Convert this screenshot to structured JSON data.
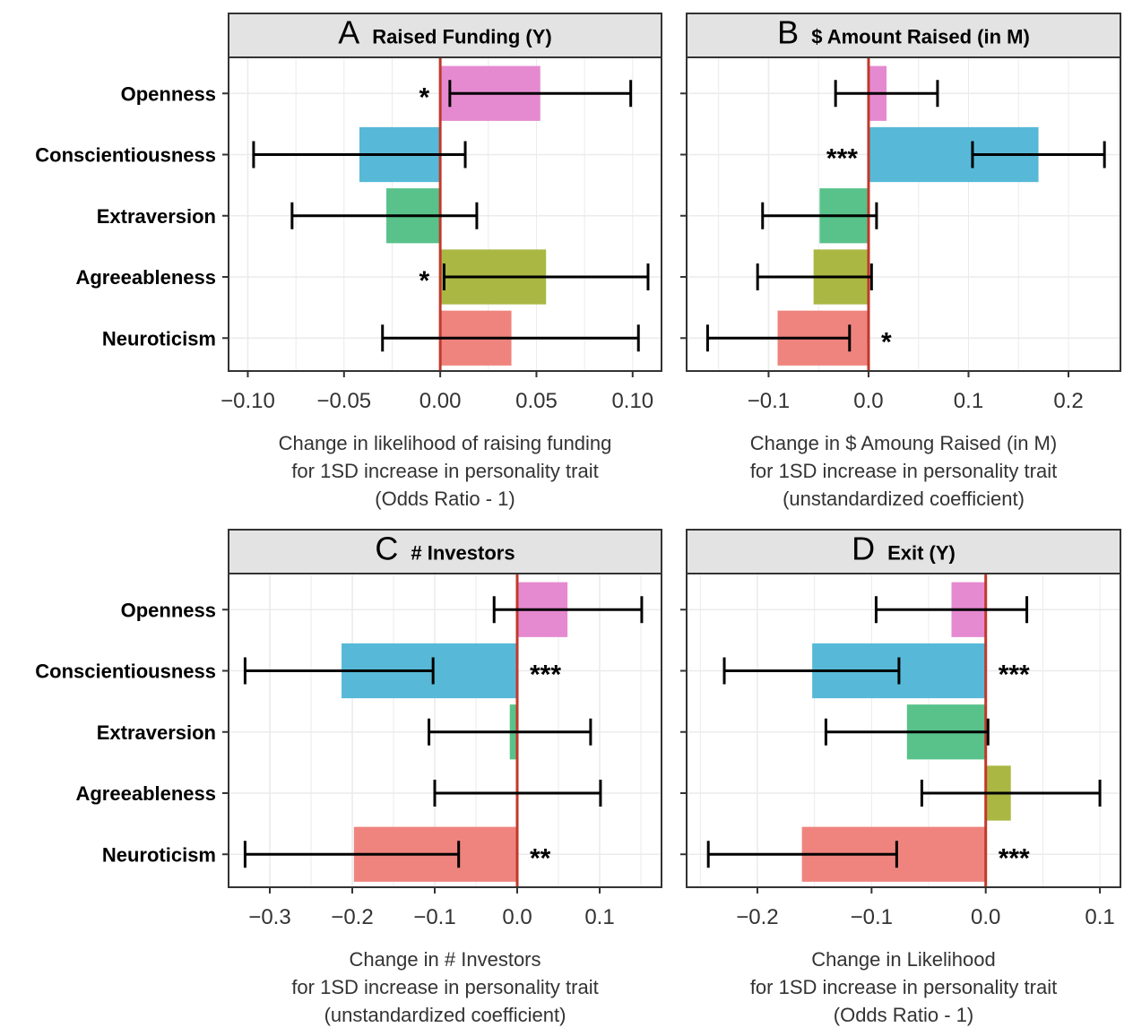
{
  "colors": {
    "Openness": "#e58ad0",
    "Conscientiousness": "#57b9d7",
    "Extraversion": "#58c28a",
    "Agreeableness": "#aab843",
    "Neuroticism": "#ef847e",
    "zero_line": "#c0392b",
    "grid": "#ebebeb",
    "strip_fill": "#e3e3e3"
  },
  "chart_data": [
    {
      "panel": "A",
      "type": "bar",
      "title": "Raised Funding (Y)",
      "orientation": "horizontal",
      "categories": [
        "Openness",
        "Conscientiousness",
        "Extraversion",
        "Agreeableness",
        "Neuroticism"
      ],
      "values": [
        0.052,
        -0.042,
        -0.028,
        0.055,
        0.037
      ],
      "ci_low": [
        0.005,
        -0.097,
        -0.077,
        0.002,
        -0.03
      ],
      "ci_high": [
        0.099,
        0.013,
        0.019,
        0.108,
        0.103
      ],
      "significance": [
        "*",
        "",
        "",
        "*",
        ""
      ],
      "xlim": [
        -0.11,
        0.115
      ],
      "xticks": [
        -0.1,
        -0.05,
        0.0,
        0.05,
        0.1
      ],
      "xtick_labels": [
        "−0.10",
        "−0.05",
        "0.00",
        "0.05",
        "0.10"
      ],
      "xlabel": [
        "Change in likelihood of raising funding",
        "for 1SD increase in personality trait",
        "(Odds Ratio - 1)"
      ],
      "show_category_labels": true
    },
    {
      "panel": "B",
      "type": "bar",
      "title": "$ Amount Raised (in M)",
      "orientation": "horizontal",
      "categories": [
        "Openness",
        "Conscientiousness",
        "Extraversion",
        "Agreeableness",
        "Neuroticism"
      ],
      "values": [
        0.018,
        0.17,
        -0.049,
        -0.055,
        -0.091
      ],
      "ci_low": [
        -0.033,
        0.104,
        -0.106,
        -0.111,
        -0.161
      ],
      "ci_high": [
        0.069,
        0.236,
        0.008,
        0.003,
        -0.019
      ],
      "significance": [
        "",
        "***",
        "",
        "",
        "*"
      ],
      "xlim": [
        -0.182,
        0.252
      ],
      "xticks": [
        -0.1,
        0.0,
        0.1,
        0.2
      ],
      "xtick_labels": [
        "−0.1",
        "0.0",
        "0.1",
        "0.2"
      ],
      "xlabel": [
        "Change in $ Amoung Raised (in M)",
        "for 1SD increase in personality trait",
        "(unstandardized coefficient)"
      ],
      "show_category_labels": false
    },
    {
      "panel": "C",
      "type": "bar",
      "title": "# Investors",
      "orientation": "horizontal",
      "categories": [
        "Openness",
        "Conscientiousness",
        "Extraversion",
        "Agreeableness",
        "Neuroticism"
      ],
      "values": [
        0.061,
        -0.213,
        -0.009,
        0.0,
        -0.198
      ],
      "ci_low": [
        -0.028,
        -0.33,
        -0.107,
        -0.1,
        -0.33
      ],
      "ci_high": [
        0.151,
        -0.102,
        0.089,
        0.101,
        -0.071
      ],
      "significance": [
        "",
        "***",
        "",
        "",
        "**"
      ],
      "xlim": [
        -0.35,
        0.175
      ],
      "xticks": [
        -0.3,
        -0.2,
        -0.1,
        0.0,
        0.1
      ],
      "xtick_labels": [
        "−0.3",
        "−0.2",
        "−0.1",
        "0.0",
        "0.1"
      ],
      "xlabel": [
        "Change in # Investors",
        "for 1SD increase in personality trait",
        "(unstandardized coefficient)"
      ],
      "show_category_labels": true
    },
    {
      "panel": "D",
      "type": "bar",
      "title": "Exit (Y)",
      "orientation": "horizontal",
      "categories": [
        "Openness",
        "Conscientiousness",
        "Extraversion",
        "Agreeableness",
        "Neuroticism"
      ],
      "values": [
        -0.03,
        -0.152,
        -0.069,
        0.022,
        -0.161
      ],
      "ci_low": [
        -0.096,
        -0.229,
        -0.14,
        -0.056,
        -0.243
      ],
      "ci_high": [
        0.036,
        -0.076,
        0.002,
        0.1,
        -0.078
      ],
      "significance": [
        "",
        "***",
        "",
        "",
        "***"
      ],
      "xlim": [
        -0.262,
        0.118
      ],
      "xticks": [
        -0.2,
        -0.1,
        0.0,
        0.1
      ],
      "xtick_labels": [
        "−0.2",
        "−0.1",
        "0.0",
        "0.1"
      ],
      "xlabel": [
        "Change in Likelihood",
        "for 1SD increase in personality trait",
        "(Odds Ratio - 1)"
      ],
      "show_category_labels": false
    }
  ]
}
